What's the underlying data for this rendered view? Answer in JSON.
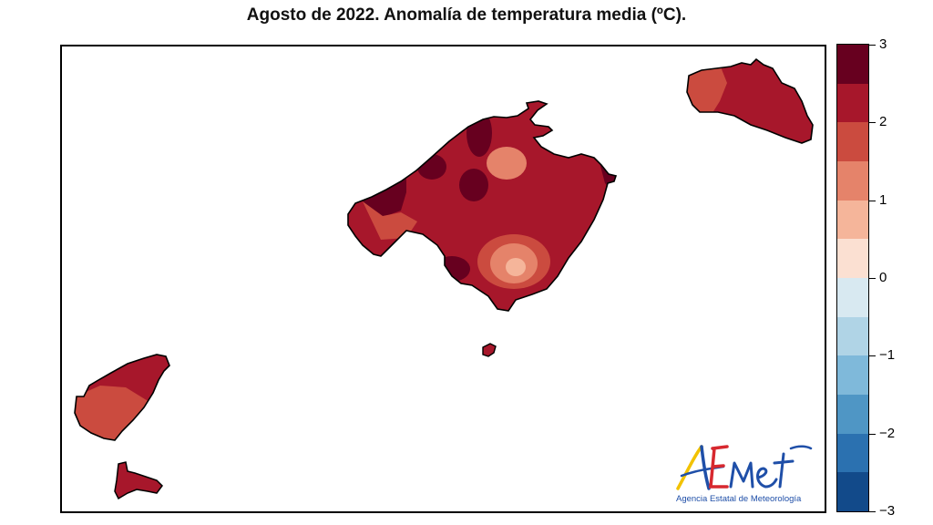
{
  "title": "Agosto de 2022. Anomalía de temperatura media (ºC).",
  "colorbar": {
    "ticks": [
      "3",
      "2",
      "1",
      "0",
      "−1",
      "−2",
      "−3"
    ],
    "min": -3,
    "max": 3,
    "step": 0.5,
    "colors_top_to_bottom": [
      "#67001f",
      "#a7172b",
      "#cb4b3f",
      "#e5836a",
      "#f5b59a",
      "#fbe0d2",
      "#d8e9f1",
      "#b0d4e6",
      "#7fb9da",
      "#4f96c5",
      "#2b71b0",
      "#124a8a"
    ]
  },
  "map": {
    "islands": [
      "Mallorca",
      "Menorca",
      "Ibiza",
      "Formentera",
      "Cabrera"
    ],
    "dominant_anomaly_range": "2 a 2,5",
    "colors": {
      "mallorca_base": "#a7172b",
      "warmest": "#67001f",
      "mid": "#cb4b3f",
      "mild": "#e5836a",
      "coolest_patch": "#f5b59a"
    }
  },
  "logo": {
    "wordmark": "AEmet",
    "caption": "Agencia Estatal de Meteorología",
    "colors": {
      "a_yellow": "#f2c200",
      "e_red": "#d7282f",
      "blue": "#1f4fa8"
    }
  }
}
